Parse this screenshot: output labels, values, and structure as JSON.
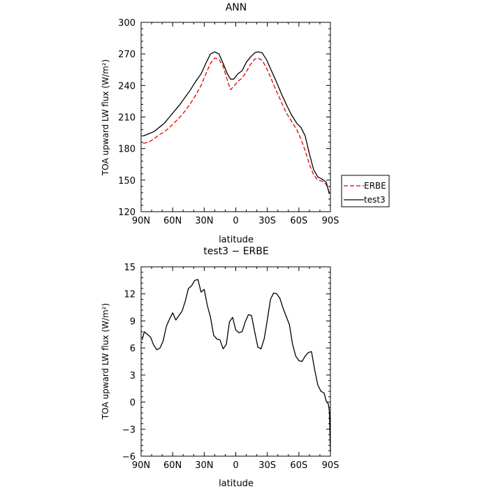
{
  "chart_data": [
    {
      "type": "line",
      "title": "ANN",
      "xlabel": "latitude",
      "ylabel": "TOA upward LW flux (W/m²)",
      "xlim": [
        90,
        -90
      ],
      "ylim": [
        120,
        300
      ],
      "x_ticks": [
        90,
        60,
        30,
        0,
        -30,
        -60,
        -90
      ],
      "x_tick_labels": [
        "90N",
        "60N",
        "30N",
        "0",
        "30S",
        "60S",
        "90S"
      ],
      "y_ticks": [
        120,
        150,
        180,
        210,
        240,
        270,
        300
      ],
      "y_tick_labels": [
        "120",
        "150",
        "180",
        "210",
        "240",
        "270",
        "300"
      ],
      "legend": "right",
      "series": [
        {
          "name": "ERBE",
          "color": "#e00000",
          "dash": "dashed",
          "points": [
            [
              88,
              185
            ],
            [
              83,
              186
            ],
            [
              78,
              189
            ],
            [
              73,
              193
            ],
            [
              68,
              196
            ],
            [
              63,
              200
            ],
            [
              58,
              205
            ],
            [
              53,
              210
            ],
            [
              48,
              216
            ],
            [
              43,
              223
            ],
            [
              38,
              231
            ],
            [
              33,
              240
            ],
            [
              28,
              252
            ],
            [
              24,
              261
            ],
            [
              20,
              266
            ],
            [
              16,
              265
            ],
            [
              12,
              258
            ],
            [
              8,
              245
            ],
            [
              5,
              236
            ],
            [
              2,
              239
            ],
            [
              -2,
              244
            ],
            [
              -6,
              247
            ],
            [
              -10,
              253
            ],
            [
              -14,
              260
            ],
            [
              -18,
              265
            ],
            [
              -21,
              266
            ],
            [
              -25,
              264
            ],
            [
              -29,
              257
            ],
            [
              -33,
              248
            ],
            [
              -38,
              236
            ],
            [
              -43,
              225
            ],
            [
              -48,
              214
            ],
            [
              -53,
              206
            ],
            [
              -58,
              198
            ],
            [
              -62,
              189
            ],
            [
              -66,
              178
            ],
            [
              -70,
              165
            ],
            [
              -74,
              155
            ],
            [
              -78,
              150
            ],
            [
              -82,
              149
            ],
            [
              -86,
              146
            ],
            [
              -89,
              138
            ]
          ]
        },
        {
          "name": "test3",
          "color": "#000000",
          "dash": "solid",
          "points": [
            [
              88,
              192
            ],
            [
              83,
              194
            ],
            [
              78,
              196
            ],
            [
              73,
              200
            ],
            [
              68,
              204
            ],
            [
              63,
              210
            ],
            [
              58,
              216
            ],
            [
              53,
              222
            ],
            [
              48,
              229
            ],
            [
              43,
              236
            ],
            [
              38,
              244
            ],
            [
              33,
              251
            ],
            [
              28,
              262
            ],
            [
              24,
              270
            ],
            [
              20,
              272
            ],
            [
              16,
              270
            ],
            [
              12,
              261
            ],
            [
              8,
              251
            ],
            [
              5,
              246
            ],
            [
              2,
              246
            ],
            [
              -2,
              251
            ],
            [
              -6,
              254
            ],
            [
              -10,
              262
            ],
            [
              -14,
              267
            ],
            [
              -18,
              271
            ],
            [
              -21,
              272
            ],
            [
              -25,
              271
            ],
            [
              -29,
              265
            ],
            [
              -33,
              256
            ],
            [
              -38,
              245
            ],
            [
              -43,
              233
            ],
            [
              -48,
              222
            ],
            [
              -53,
              212
            ],
            [
              -58,
              204
            ],
            [
              -62,
              200
            ],
            [
              -66,
              192
            ],
            [
              -70,
              175
            ],
            [
              -74,
              160
            ],
            [
              -78,
              153
            ],
            [
              -82,
              151
            ],
            [
              -86,
              148
            ],
            [
              -89,
              137
            ]
          ]
        }
      ]
    },
    {
      "type": "line",
      "title": "test3 − ERBE",
      "xlabel": "latitude",
      "ylabel": "TOA upward LW flux (W/m²)",
      "xlim": [
        90,
        -90
      ],
      "ylim": [
        -6,
        15
      ],
      "x_ticks": [
        90,
        60,
        30,
        0,
        -30,
        -60,
        -90
      ],
      "x_tick_labels": [
        "90N",
        "60N",
        "30N",
        "0",
        "30S",
        "60S",
        "90S"
      ],
      "y_ticks": [
        -6,
        -3,
        0,
        3,
        6,
        9,
        12,
        15
      ],
      "y_tick_labels": [
        "−6",
        "−3",
        "0",
        "3",
        "6",
        "9",
        "12",
        "15"
      ],
      "series": [
        {
          "color": "#000000",
          "dash": "solid",
          "points": [
            [
              89,
              6.9
            ],
            [
              87,
              7.8
            ],
            [
              84,
              7.5
            ],
            [
              81,
              7.2
            ],
            [
              78,
              6.3
            ],
            [
              75,
              5.8
            ],
            [
              72,
              6.0
            ],
            [
              69,
              6.8
            ],
            [
              66,
              8.4
            ],
            [
              63,
              9.2
            ],
            [
              60,
              9.9
            ],
            [
              57,
              9.1
            ],
            [
              54,
              9.6
            ],
            [
              51,
              10.1
            ],
            [
              48,
              11.2
            ],
            [
              45,
              12.6
            ],
            [
              42,
              12.9
            ],
            [
              39,
              13.5
            ],
            [
              36,
              13.6
            ],
            [
              33,
              12.2
            ],
            [
              30,
              12.5
            ],
            [
              27,
              10.7
            ],
            [
              24,
              9.4
            ],
            [
              21,
              7.4
            ],
            [
              18,
              7.0
            ],
            [
              15,
              6.9
            ],
            [
              12,
              5.9
            ],
            [
              9,
              6.4
            ],
            [
              6,
              8.9
            ],
            [
              3,
              9.4
            ],
            [
              0,
              8.0
            ],
            [
              -3,
              7.7
            ],
            [
              -6,
              7.8
            ],
            [
              -9,
              8.9
            ],
            [
              -12,
              9.7
            ],
            [
              -15,
              9.6
            ],
            [
              -18,
              7.8
            ],
            [
              -21,
              6.1
            ],
            [
              -24,
              5.9
            ],
            [
              -27,
              7.0
            ],
            [
              -30,
              9.1
            ],
            [
              -33,
              11.4
            ],
            [
              -36,
              12.1
            ],
            [
              -39,
              12.0
            ],
            [
              -42,
              11.5
            ],
            [
              -45,
              10.4
            ],
            [
              -48,
              9.5
            ],
            [
              -51,
              8.6
            ],
            [
              -54,
              6.4
            ],
            [
              -57,
              5.1
            ],
            [
              -60,
              4.6
            ],
            [
              -63,
              4.5
            ],
            [
              -66,
              5.1
            ],
            [
              -69,
              5.5
            ],
            [
              -72,
              5.6
            ],
            [
              -75,
              3.6
            ],
            [
              -78,
              1.9
            ],
            [
              -81,
              1.2
            ],
            [
              -84,
              1.0
            ],
            [
              -86,
              0.1
            ],
            [
              -88,
              -0.2
            ],
            [
              -89,
              -1.0
            ],
            [
              -90,
              -5.5
            ]
          ]
        }
      ]
    }
  ]
}
